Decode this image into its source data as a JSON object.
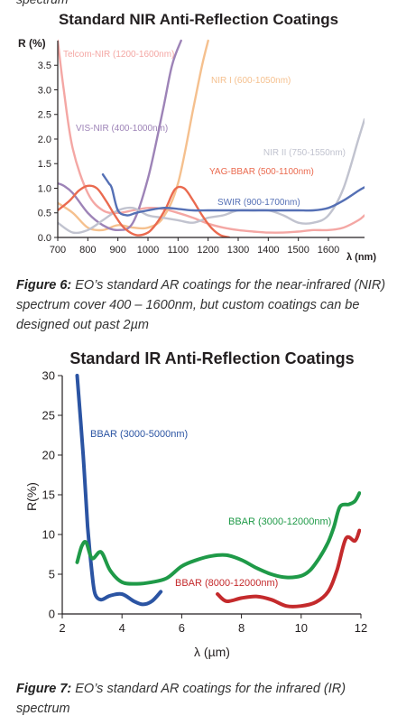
{
  "top_fragment": "spectrum",
  "captions": [
    {
      "label": "Figure 6:",
      "text": "EO’s standard AR coatings for the near-infrared (NIR) spectrum cover 400 – 1600nm, but custom coatings can be designed out past 2µm"
    },
    {
      "label": "Figure 7:",
      "text": "EO’s standard AR coatings for the infrared (IR) spectrum"
    }
  ],
  "chart_data": [
    {
      "type": "line",
      "title": "Standard NIR Anti-Reflection Coatings",
      "ylabel": "R (%)",
      "xlabel": "λ (nm)",
      "xlim": [
        700,
        1720
      ],
      "ylim": [
        0,
        4
      ],
      "x_ticks": [
        "700",
        "800",
        "900",
        "1000",
        "1100",
        "1200",
        "1300",
        "1400",
        "1500",
        "1600"
      ],
      "y_ticks": [
        "0.0",
        "0.5",
        "1.0",
        "1.5",
        "2.0",
        "2.5",
        "3.0",
        "3.5"
      ],
      "grid": false,
      "series": [
        {
          "name": "Telcom-NIR (1200-1600nm)",
          "color": "#f4a7a4",
          "x": [
            700,
            720,
            750,
            800,
            850,
            900,
            950,
            1000,
            1050,
            1100,
            1150,
            1200,
            1250,
            1300,
            1350,
            1400,
            1450,
            1500,
            1550,
            1600,
            1650,
            1700,
            1720
          ],
          "y": [
            4.0,
            3.0,
            1.8,
            0.9,
            0.55,
            0.5,
            0.55,
            0.6,
            0.58,
            0.5,
            0.4,
            0.28,
            0.2,
            0.15,
            0.12,
            0.1,
            0.1,
            0.12,
            0.15,
            0.15,
            0.2,
            0.35,
            0.45
          ]
        },
        {
          "name": "NIR I (600-1050nm)",
          "color": "#f5c08e",
          "x": [
            700,
            750,
            800,
            850,
            900,
            950,
            1000,
            1050,
            1100,
            1150,
            1180,
            1200
          ],
          "y": [
            0.7,
            0.5,
            0.2,
            0.15,
            0.25,
            0.2,
            0.2,
            0.4,
            1.1,
            2.6,
            3.5,
            4.0
          ]
        },
        {
          "name": "VIS-NIR (400-1000nm)",
          "color": "#9d83b7",
          "x": [
            700,
            720,
            750,
            800,
            850,
            900,
            950,
            1000,
            1050,
            1080,
            1110
          ],
          "y": [
            1.1,
            1.05,
            0.9,
            0.5,
            0.25,
            0.15,
            0.3,
            1.2,
            2.6,
            3.5,
            4.0
          ]
        },
        {
          "name": "NIR II (750-1550nm)",
          "color": "#c1c3cf",
          "x": [
            700,
            750,
            800,
            850,
            900,
            950,
            1000,
            1050,
            1100,
            1150,
            1200,
            1250,
            1300,
            1350,
            1400,
            1450,
            1500,
            1550,
            1600,
            1650,
            1700,
            1720
          ],
          "y": [
            0.3,
            0.1,
            0.15,
            0.35,
            0.55,
            0.6,
            0.45,
            0.4,
            0.35,
            0.3,
            0.4,
            0.45,
            0.55,
            0.55,
            0.55,
            0.45,
            0.3,
            0.3,
            0.45,
            1.0,
            2.0,
            2.4
          ]
        },
        {
          "name": "YAG-BBAR (500-1100nm)",
          "color": "#ea6a4f",
          "x": [
            700,
            740,
            770,
            800,
            830,
            860,
            890,
            920,
            960,
            1000,
            1030,
            1060,
            1090,
            1120,
            1150,
            1180,
            1210,
            1240,
            1270
          ],
          "y": [
            0.55,
            0.75,
            0.95,
            1.05,
            1.0,
            0.75,
            0.45,
            0.2,
            0.05,
            0.1,
            0.3,
            0.6,
            0.98,
            1.0,
            0.75,
            0.45,
            0.2,
            0.05,
            0.0
          ]
        },
        {
          "name": "SWIR (900-1700nm)",
          "color": "#5570b5",
          "x": [
            850,
            870,
            880,
            900,
            930,
            960,
            1000,
            1050,
            1100,
            1150,
            1200,
            1250,
            1300,
            1350,
            1400,
            1450,
            1500,
            1550,
            1600,
            1650,
            1700,
            1720
          ],
          "y": [
            1.28,
            1.1,
            1.0,
            0.55,
            0.45,
            0.5,
            0.55,
            0.6,
            0.58,
            0.55,
            0.55,
            0.55,
            0.55,
            0.55,
            0.55,
            0.55,
            0.55,
            0.55,
            0.6,
            0.75,
            0.95,
            1.02
          ]
        }
      ]
    },
    {
      "type": "line",
      "title": "Standard IR Anti-Reflection Coatings",
      "ylabel": "R(%)",
      "xlabel": "λ (µm)",
      "xlim": [
        2,
        12
      ],
      "ylim": [
        0,
        30
      ],
      "x_ticks": [
        "2",
        "4",
        "6",
        "8",
        "10",
        "12"
      ],
      "y_ticks": [
        "0",
        "5",
        "10",
        "15",
        "20",
        "25",
        "30"
      ],
      "grid": false,
      "series": [
        {
          "name": "BBAR (3000-5000nm)",
          "color": "#2b54a3",
          "x": [
            2.5,
            2.7,
            2.85,
            3.0,
            3.1,
            3.3,
            3.6,
            4.0,
            4.4,
            4.7,
            5.0,
            5.3
          ],
          "y": [
            30,
            20,
            11,
            5,
            2.5,
            1.8,
            2.3,
            2.5,
            1.6,
            1.2,
            1.6,
            2.8
          ]
        },
        {
          "name": "BBAR (3000-12000nm)",
          "color": "#1f9a48",
          "x": [
            2.5,
            2.65,
            2.8,
            3.0,
            3.3,
            3.6,
            4.0,
            4.5,
            5.0,
            5.5,
            6.0,
            6.5,
            7.0,
            7.5,
            8.0,
            8.5,
            9.0,
            9.5,
            10.0,
            10.3,
            10.6,
            10.9,
            11.1,
            11.3,
            11.6,
            11.8,
            11.95
          ],
          "y": [
            6.5,
            8.5,
            9.0,
            7.0,
            7.8,
            5.5,
            4.0,
            3.8,
            4.0,
            4.5,
            6.0,
            6.8,
            7.3,
            7.4,
            6.8,
            5.8,
            5.0,
            4.6,
            4.8,
            5.5,
            7.0,
            9.0,
            11.0,
            13.5,
            13.8,
            14.2,
            15.2
          ]
        },
        {
          "name": "BBAR (8000-12000nm)",
          "color": "#c42a2c",
          "x": [
            7.2,
            7.5,
            8.0,
            8.5,
            9.0,
            9.5,
            10.0,
            10.5,
            10.9,
            11.2,
            11.5,
            11.8,
            11.95
          ],
          "y": [
            2.5,
            1.6,
            2.0,
            2.2,
            1.8,
            1.0,
            1.0,
            1.5,
            2.8,
            5.5,
            9.5,
            9.2,
            10.5
          ]
        }
      ]
    }
  ]
}
